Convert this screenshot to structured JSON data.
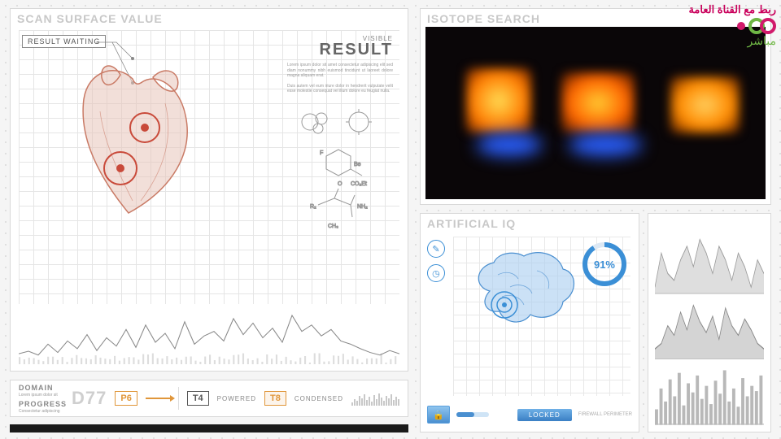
{
  "broadcast": {
    "link_text": "ربط مع القناة العامة",
    "live_text": "مباشر",
    "accent_pink": "#c9005b",
    "accent_green": "#6fb745"
  },
  "left_panel": {
    "title": "SCAN SURFACE VALUE",
    "result_waiting": "RESULT WAITING",
    "visible_small": "VISIBLE",
    "visible_big": "RESULT",
    "lorem1": "Lorem ipsum dolor sit amet consectetur adipiscing elit sed diam nonummy nibh euismod tincidunt ut laoreet dolore magna aliquam erat.",
    "lorem2": "Duis autem vel eum iriure dolor in hendrerit vulputate velit esse molestie consequat vel illum dolore eu feugiat nulla.",
    "heart_color": "#d98b7a",
    "target_color": "#c94a3a",
    "sparkline": {
      "points": [
        10,
        14,
        8,
        25,
        12,
        30,
        18,
        40,
        15,
        35,
        22,
        48,
        20,
        55,
        28,
        42,
        18,
        60,
        25,
        38,
        45,
        30,
        65,
        40,
        58,
        35,
        50,
        28,
        70,
        45,
        55,
        38,
        48,
        30,
        25,
        18,
        12,
        8,
        15,
        10
      ],
      "color": "#888888"
    }
  },
  "domain_bar": {
    "domain_label": "DOMAIN",
    "progress_label": "PROGRESS",
    "big_code": "D77",
    "p_code": "P6",
    "p_color": "#e0963a",
    "t4_code": "T4",
    "t4_label": "POWERED",
    "t4_color": "#555555",
    "t8_code": "T8",
    "t8_label": "CONDENSED",
    "t8_color": "#e0963a",
    "progress_bars": [
      4,
      8,
      6,
      12,
      9,
      14,
      7,
      11,
      5,
      13,
      8,
      15,
      10,
      6,
      12,
      9,
      14,
      7,
      11,
      8
    ]
  },
  "video_panel": {
    "title": "ISOTOPE SEARCH"
  },
  "brain_panel": {
    "title": "ARTIFICIAL IQ",
    "brain_color": "#7fb5e8",
    "brain_stroke": "#4a8fd0",
    "donut_pct": "91%",
    "donut_value": 91,
    "donut_color": "#3b8fd6",
    "donut_bg": "#dce8f4",
    "pill_label": "LOCKED",
    "tag_label": "FIREWALL PERIMETER"
  },
  "charts": {
    "area1": {
      "color": "#9a9a9a",
      "fill": "#c8c8c8",
      "pts": [
        5,
        30,
        15,
        10,
        25,
        35,
        20,
        40,
        30,
        15,
        35,
        25,
        10,
        30,
        20,
        5,
        25,
        15
      ]
    },
    "area2": {
      "color": "#888888",
      "fill": "#b8b8b8",
      "pts": [
        8,
        12,
        25,
        18,
        35,
        22,
        40,
        28,
        20,
        32,
        15,
        38,
        25,
        18,
        30,
        22,
        12,
        8
      ]
    },
    "bars": {
      "color": "#b8b8b8",
      "vals": [
        12,
        28,
        18,
        35,
        22,
        40,
        15,
        32,
        25,
        38,
        20,
        30,
        16,
        34,
        24,
        42,
        18,
        28,
        14,
        36,
        22,
        30,
        26,
        38
      ]
    }
  }
}
